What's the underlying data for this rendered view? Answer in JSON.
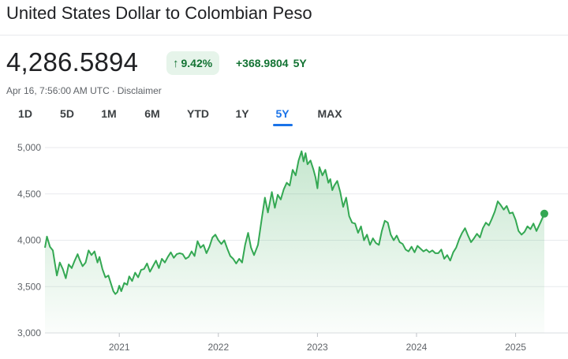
{
  "header": {
    "title": "United States Dollar to Colombian Peso"
  },
  "quote": {
    "price": "4,286.5894",
    "change_pct": "9.42%",
    "change_abs": "+368.9804",
    "change_period": "5Y",
    "trend_icon": "arrow-up-icon",
    "timestamp": "Apr 16, 7:56:00 AM UTC",
    "disclaimer": "Disclaimer",
    "positive_color": "#137333",
    "positive_bg": "#e6f4ea"
  },
  "range_tabs": [
    {
      "label": "1D",
      "active": false
    },
    {
      "label": "5D",
      "active": false
    },
    {
      "label": "1M",
      "active": false
    },
    {
      "label": "6M",
      "active": false
    },
    {
      "label": "YTD",
      "active": false
    },
    {
      "label": "1Y",
      "active": false
    },
    {
      "label": "5Y",
      "active": true
    },
    {
      "label": "MAX",
      "active": false
    }
  ],
  "chart_data": {
    "type": "area",
    "title": "",
    "xlabel": "",
    "ylabel": "",
    "ylim": [
      3000,
      5000
    ],
    "xlim": [
      2020.25,
      2025.29
    ],
    "grid": true,
    "line_color": "#34a853",
    "y_ticks": [
      {
        "value": 5000,
        "label": "5,000"
      },
      {
        "value": 4500,
        "label": "4,500"
      },
      {
        "value": 4000,
        "label": "4,000"
      },
      {
        "value": 3500,
        "label": "3,500"
      },
      {
        "value": 3000,
        "label": "3,000"
      }
    ],
    "x_ticks": [
      {
        "value": 2021,
        "label": "2021"
      },
      {
        "value": 2022,
        "label": "2022"
      },
      {
        "value": 2023,
        "label": "2023"
      },
      {
        "value": 2024,
        "label": "2024"
      },
      {
        "value": 2025,
        "label": "2025"
      }
    ],
    "series": [
      {
        "points": [
          [
            2020.25,
            3920
          ],
          [
            2020.27,
            4040
          ],
          [
            2020.3,
            3930
          ],
          [
            2020.33,
            3890
          ],
          [
            2020.35,
            3750
          ],
          [
            2020.37,
            3620
          ],
          [
            2020.4,
            3760
          ],
          [
            2020.43,
            3690
          ],
          [
            2020.46,
            3590
          ],
          [
            2020.49,
            3740
          ],
          [
            2020.52,
            3700
          ],
          [
            2020.55,
            3780
          ],
          [
            2020.58,
            3850
          ],
          [
            2020.6,
            3790
          ],
          [
            2020.63,
            3720
          ],
          [
            2020.66,
            3760
          ],
          [
            2020.69,
            3890
          ],
          [
            2020.72,
            3840
          ],
          [
            2020.75,
            3880
          ],
          [
            2020.78,
            3760
          ],
          [
            2020.8,
            3820
          ],
          [
            2020.83,
            3690
          ],
          [
            2020.86,
            3600
          ],
          [
            2020.89,
            3620
          ],
          [
            2020.92,
            3520
          ],
          [
            2020.94,
            3450
          ],
          [
            2020.96,
            3420
          ],
          [
            2020.98,
            3440
          ],
          [
            2021.0,
            3510
          ],
          [
            2021.02,
            3450
          ],
          [
            2021.05,
            3540
          ],
          [
            2021.08,
            3520
          ],
          [
            2021.1,
            3610
          ],
          [
            2021.13,
            3560
          ],
          [
            2021.16,
            3650
          ],
          [
            2021.19,
            3600
          ],
          [
            2021.22,
            3680
          ],
          [
            2021.25,
            3690
          ],
          [
            2021.28,
            3750
          ],
          [
            2021.31,
            3660
          ],
          [
            2021.34,
            3720
          ],
          [
            2021.37,
            3780
          ],
          [
            2021.4,
            3700
          ],
          [
            2021.43,
            3800
          ],
          [
            2021.46,
            3760
          ],
          [
            2021.49,
            3820
          ],
          [
            2021.52,
            3870
          ],
          [
            2021.55,
            3810
          ],
          [
            2021.58,
            3850
          ],
          [
            2021.61,
            3860
          ],
          [
            2021.64,
            3850
          ],
          [
            2021.67,
            3800
          ],
          [
            2021.7,
            3820
          ],
          [
            2021.73,
            3880
          ],
          [
            2021.76,
            3830
          ],
          [
            2021.79,
            3990
          ],
          [
            2021.82,
            3920
          ],
          [
            2021.85,
            3950
          ],
          [
            2021.88,
            3860
          ],
          [
            2021.91,
            3930
          ],
          [
            2021.94,
            4030
          ],
          [
            2021.97,
            4060
          ],
          [
            2022.0,
            4000
          ],
          [
            2022.03,
            3960
          ],
          [
            2022.06,
            4000
          ],
          [
            2022.09,
            3910
          ],
          [
            2022.12,
            3830
          ],
          [
            2022.15,
            3800
          ],
          [
            2022.18,
            3750
          ],
          [
            2022.21,
            3800
          ],
          [
            2022.24,
            3760
          ],
          [
            2022.27,
            3950
          ],
          [
            2022.3,
            4080
          ],
          [
            2022.33,
            3920
          ],
          [
            2022.36,
            3840
          ],
          [
            2022.4,
            3950
          ],
          [
            2022.44,
            4250
          ],
          [
            2022.47,
            4460
          ],
          [
            2022.5,
            4300
          ],
          [
            2022.54,
            4520
          ],
          [
            2022.57,
            4350
          ],
          [
            2022.6,
            4490
          ],
          [
            2022.63,
            4440
          ],
          [
            2022.66,
            4550
          ],
          [
            2022.69,
            4620
          ],
          [
            2022.72,
            4590
          ],
          [
            2022.75,
            4760
          ],
          [
            2022.78,
            4700
          ],
          [
            2022.81,
            4860
          ],
          [
            2022.84,
            4960
          ],
          [
            2022.86,
            4850
          ],
          [
            2022.88,
            4940
          ],
          [
            2022.9,
            4820
          ],
          [
            2022.93,
            4860
          ],
          [
            2022.96,
            4760
          ],
          [
            2022.98,
            4680
          ],
          [
            2023.0,
            4560
          ],
          [
            2023.02,
            4790
          ],
          [
            2023.05,
            4700
          ],
          [
            2023.08,
            4760
          ],
          [
            2023.11,
            4620
          ],
          [
            2023.13,
            4660
          ],
          [
            2023.15,
            4540
          ],
          [
            2023.17,
            4590
          ],
          [
            2023.2,
            4640
          ],
          [
            2023.23,
            4520
          ],
          [
            2023.26,
            4360
          ],
          [
            2023.29,
            4460
          ],
          [
            2023.32,
            4260
          ],
          [
            2023.35,
            4190
          ],
          [
            2023.38,
            4180
          ],
          [
            2023.41,
            4080
          ],
          [
            2023.44,
            4150
          ],
          [
            2023.47,
            4000
          ],
          [
            2023.5,
            4060
          ],
          [
            2023.53,
            3950
          ],
          [
            2023.56,
            4020
          ],
          [
            2023.59,
            3970
          ],
          [
            2023.62,
            3950
          ],
          [
            2023.65,
            4100
          ],
          [
            2023.68,
            4210
          ],
          [
            2023.71,
            4190
          ],
          [
            2023.74,
            4060
          ],
          [
            2023.77,
            4000
          ],
          [
            2023.8,
            4050
          ],
          [
            2023.83,
            3980
          ],
          [
            2023.86,
            3960
          ],
          [
            2023.89,
            3900
          ],
          [
            2023.92,
            3880
          ],
          [
            2023.95,
            3930
          ],
          [
            2023.98,
            3870
          ],
          [
            2024.01,
            3940
          ],
          [
            2024.04,
            3910
          ],
          [
            2024.07,
            3880
          ],
          [
            2024.1,
            3900
          ],
          [
            2024.13,
            3870
          ],
          [
            2024.16,
            3890
          ],
          [
            2024.19,
            3860
          ],
          [
            2024.22,
            3860
          ],
          [
            2024.25,
            3900
          ],
          [
            2024.28,
            3800
          ],
          [
            2024.31,
            3840
          ],
          [
            2024.34,
            3780
          ],
          [
            2024.37,
            3870
          ],
          [
            2024.4,
            3920
          ],
          [
            2024.43,
            4010
          ],
          [
            2024.46,
            4080
          ],
          [
            2024.49,
            4130
          ],
          [
            2024.52,
            4050
          ],
          [
            2024.55,
            3980
          ],
          [
            2024.58,
            4020
          ],
          [
            2024.61,
            4070
          ],
          [
            2024.64,
            4030
          ],
          [
            2024.67,
            4130
          ],
          [
            2024.7,
            4190
          ],
          [
            2024.73,
            4160
          ],
          [
            2024.76,
            4230
          ],
          [
            2024.79,
            4310
          ],
          [
            2024.82,
            4420
          ],
          [
            2024.85,
            4380
          ],
          [
            2024.88,
            4330
          ],
          [
            2024.91,
            4370
          ],
          [
            2024.94,
            4290
          ],
          [
            2024.97,
            4300
          ],
          [
            2025.0,
            4220
          ],
          [
            2025.03,
            4100
          ],
          [
            2025.06,
            4060
          ],
          [
            2025.09,
            4090
          ],
          [
            2025.12,
            4150
          ],
          [
            2025.15,
            4120
          ],
          [
            2025.18,
            4180
          ],
          [
            2025.21,
            4100
          ],
          [
            2025.25,
            4190
          ],
          [
            2025.29,
            4286.59
          ]
        ]
      }
    ]
  }
}
